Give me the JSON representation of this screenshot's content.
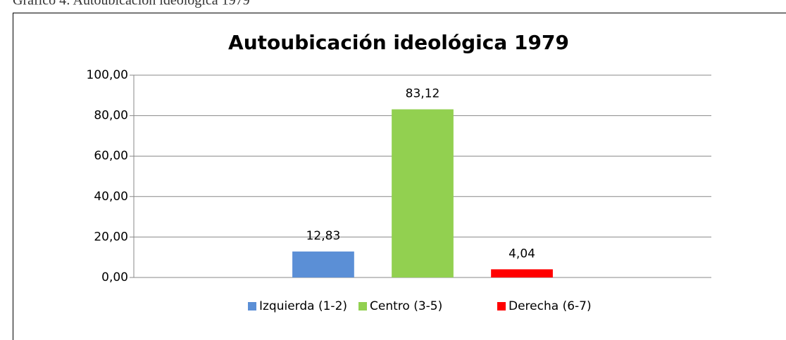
{
  "caption": "Gráfico 4: Autoubicación ideológica 1979",
  "chart_data": {
    "type": "bar",
    "title": "Autoubicación ideológica 1979",
    "categories": [
      null
    ],
    "series": [
      {
        "name": "Izquierda (1-2)",
        "color": "#5b8fd6",
        "values": [
          12.83
        ],
        "value_labels": [
          "12,83"
        ]
      },
      {
        "name": "Centro (3-5)",
        "color": "#92d050",
        "values": [
          83.12
        ],
        "value_labels": [
          "83,12"
        ]
      },
      {
        "name": "Derecha (6-7)",
        "color": "#ff0000",
        "values": [
          4.04
        ],
        "value_labels": [
          "4,04"
        ]
      }
    ],
    "ylim": [
      0,
      100
    ],
    "yticks": [
      {
        "value": 0,
        "label": "0,00"
      },
      {
        "value": 20,
        "label": "20,00"
      },
      {
        "value": 40,
        "label": "40,00"
      },
      {
        "value": 60,
        "label": "60,00"
      },
      {
        "value": 80,
        "label": "80,00"
      },
      {
        "value": 100,
        "label": "100,00"
      }
    ],
    "grid": true,
    "legend": "bottom"
  }
}
